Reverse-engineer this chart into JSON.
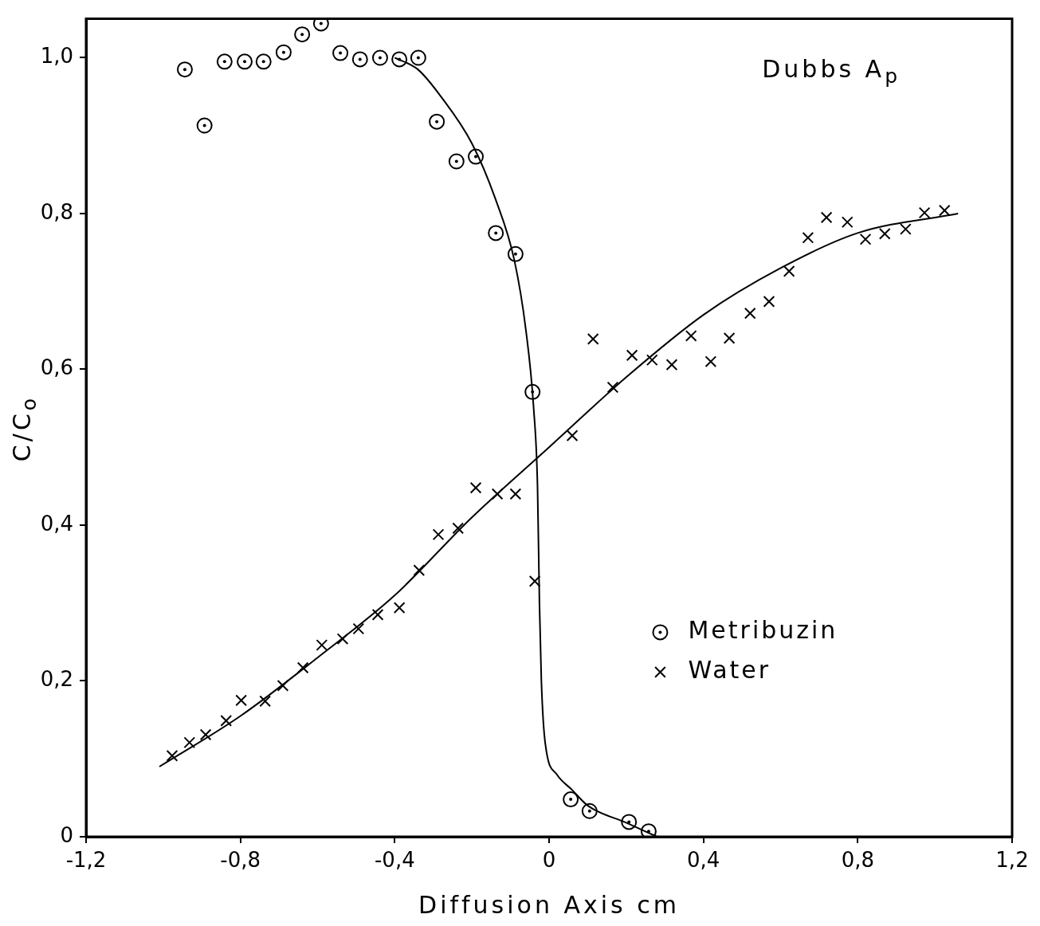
{
  "chart_data": {
    "type": "scatter",
    "title": "Dubbs A$_{p}$",
    "xlabel": "Diffusion Axis cm",
    "ylabel": "C/C$_{o}$",
    "xlim": [
      -1.2,
      1.2
    ],
    "ylim": [
      0,
      1.05
    ],
    "xticks": [
      {
        "value": -1.2,
        "label": "-1,2"
      },
      {
        "value": -0.8,
        "label": "-0,8"
      },
      {
        "value": -0.4,
        "label": "-0,4"
      },
      0,
      {
        "value": 0.4,
        "label": "0,4"
      },
      {
        "value": 0.8,
        "label": "0,8"
      },
      {
        "value": 1.2,
        "label": "1,2"
      }
    ],
    "yticks": [
      0,
      {
        "value": 0.2,
        "label": "0,2"
      },
      {
        "value": 0.4,
        "label": "0,4"
      },
      {
        "value": 0.6,
        "label": "0,6"
      },
      {
        "value": 0.8,
        "label": "0,8"
      },
      {
        "value": 1.0,
        "label": "1,0"
      }
    ],
    "grid": false,
    "legend": "right",
    "series": [
      {
        "name": "Metribuzin",
        "type": "scatter",
        "marker": "circle",
        "color": "#000000",
        "x": [
          -0.944,
          -0.893,
          -0.841,
          -0.789,
          -0.74,
          -0.688,
          -0.64,
          -0.591,
          -0.541,
          -0.49,
          -0.438,
          -0.388,
          -0.339,
          -0.291,
          -0.24,
          -0.19,
          -0.138,
          -0.087,
          -0.043,
          0.056,
          0.105,
          0.207,
          0.258
        ],
        "values": [
          0.985,
          0.913,
          0.995,
          0.995,
          0.995,
          1.007,
          1.03,
          1.044,
          1.006,
          0.998,
          1.0,
          0.998,
          1.0,
          0.918,
          0.867,
          0.873,
          0.775,
          0.748,
          0.571,
          0.048,
          0.033,
          0.019,
          0.007
        ]
      },
      {
        "name": "Water",
        "type": "scatter",
        "marker": "cross",
        "color": "#000000",
        "x": [
          -0.977,
          -0.932,
          -0.89,
          -0.837,
          -0.798,
          -0.736,
          -0.69,
          -0.638,
          -0.589,
          -0.535,
          -0.494,
          -0.444,
          -0.388,
          -0.337,
          -0.287,
          -0.236,
          -0.19,
          -0.134,
          -0.087,
          -0.037,
          0.06,
          0.114,
          0.165,
          0.215,
          0.267,
          0.318,
          0.368,
          0.419,
          0.467,
          0.521,
          0.57,
          0.622,
          0.671,
          0.719,
          0.773,
          0.82,
          0.87,
          0.924,
          0.973,
          1.025
        ],
        "values": [
          0.104,
          0.121,
          0.131,
          0.149,
          0.175,
          0.174,
          0.194,
          0.217,
          0.246,
          0.254,
          0.267,
          0.285,
          0.294,
          0.342,
          0.388,
          0.396,
          0.448,
          0.44,
          0.44,
          0.328,
          0.515,
          0.639,
          0.577,
          0.618,
          0.612,
          0.606,
          0.643,
          0.61,
          0.64,
          0.672,
          0.687,
          0.726,
          0.769,
          0.795,
          0.789,
          0.767,
          0.774,
          0.78,
          0.801,
          0.804
        ]
      },
      {
        "type": "line",
        "color": "#000000",
        "x": [
          -0.4,
          -0.34,
          -0.28,
          -0.2,
          -0.14,
          -0.09,
          -0.06,
          -0.04,
          -0.03,
          -0.025,
          -0.02,
          -0.01,
          0.02,
          0.06,
          0.1,
          0.2,
          0.28
        ],
        "values": [
          1.0,
          0.985,
          0.95,
          0.89,
          0.82,
          0.74,
          0.65,
          0.55,
          0.45,
          0.3,
          0.2,
          0.12,
          0.08,
          0.06,
          0.04,
          0.018,
          0.0
        ]
      },
      {
        "type": "line",
        "color": "#000000",
        "x": [
          -1.01,
          -0.8,
          -0.6,
          -0.4,
          -0.2,
          0,
          0.2,
          0.4,
          0.6,
          0.8,
          1.06
        ],
        "values": [
          0.09,
          0.155,
          0.23,
          0.31,
          0.41,
          0.5,
          0.59,
          0.67,
          0.73,
          0.775,
          0.8
        ]
      }
    ]
  }
}
